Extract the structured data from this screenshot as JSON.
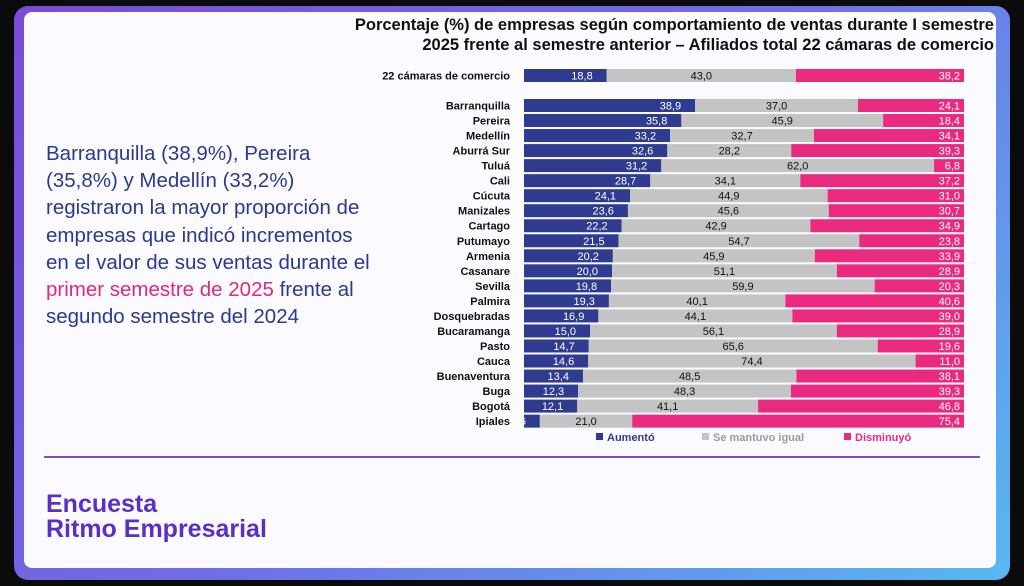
{
  "title": {
    "line1": "Porcentaje (%) de empresas según comportamiento de ventas durante I semestre",
    "line2": "2025 frente al semestre anterior – Afiliados total 22 cámaras de comercio"
  },
  "description": {
    "part1": "Barranquilla (38,9%), Pereira (35,8%) y Medellín (33,2%) registraron la mayor proporción de empresas que indicó incrementos en el valor de sus ventas durante el ",
    "highlight": "primer semestre de 2025",
    "part2": " frente al segundo semestre del 2024"
  },
  "brand": {
    "line1": "Encuesta",
    "line2": "Ritmo Empresarial"
  },
  "colors": {
    "aumento": "#2e3b8e",
    "igual": "#c4c4c4",
    "disminuyo": "#ea2a7f",
    "accent": "#5b2fc3",
    "text_blue": "#2b3a8c"
  },
  "chart_data": {
    "type": "bar",
    "stacked": true,
    "orientation": "horizontal",
    "normalized": "100%",
    "title": "Porcentaje (%) de empresas según comportamiento de ventas durante I semestre 2025 frente al semestre anterior – Afiliados total 22 cámaras de comercio",
    "total": {
      "label": "22 cámaras de comercio",
      "values": [
        "18,8",
        "43,0",
        "38,2"
      ]
    },
    "categories": [
      "Barranquilla",
      "Pereira",
      "Medellín",
      "Aburrá Sur",
      "Tuluá",
      "Cali",
      "Cúcuta",
      "Manizales",
      "Cartago",
      "Putumayo",
      "Armenia",
      "Casanare",
      "Sevilla",
      "Palmira",
      "Dosquebradas",
      "Bucaramanga",
      "Pasto",
      "Cauca",
      "Buenaventura",
      "Buga",
      "Bogotá",
      "Ipiales"
    ],
    "series": [
      {
        "name": "Aumentó",
        "values": [
          "38,9",
          "35,8",
          "33,2",
          "32,6",
          "31,2",
          "28,7",
          "24,1",
          "23,6",
          "22,2",
          "21,5",
          "20,2",
          "20,0",
          "19,8",
          "19,3",
          "16,9",
          "15,0",
          "14,7",
          "14,6",
          "13,4",
          "12,3",
          "12,1",
          "3,6"
        ]
      },
      {
        "name": "Se mantuvo igual",
        "values": [
          "37,0",
          "45,9",
          "32,7",
          "28,2",
          "62,0",
          "34,1",
          "44,9",
          "45,6",
          "42,9",
          "54,7",
          "45,9",
          "51,1",
          "59,9",
          "40,1",
          "44,1",
          "56,1",
          "65,6",
          "74,4",
          "48,5",
          "48,3",
          "41,1",
          "21,0"
        ]
      },
      {
        "name": "Disminuyó",
        "values": [
          "24,1",
          "18,4",
          "34,1",
          "39,3",
          "6,8",
          "37,2",
          "31,0",
          "30,7",
          "34,9",
          "23,8",
          "33,9",
          "28,9",
          "20,3",
          "40,6",
          "39,0",
          "28,9",
          "19,6",
          "11,0",
          "38,1",
          "39,3",
          "46,8",
          "75,4"
        ]
      }
    ],
    "legend": {
      "position": "bottom",
      "items": [
        "Aumentó",
        "Se mantuvo igual",
        "Disminuyó"
      ]
    }
  }
}
